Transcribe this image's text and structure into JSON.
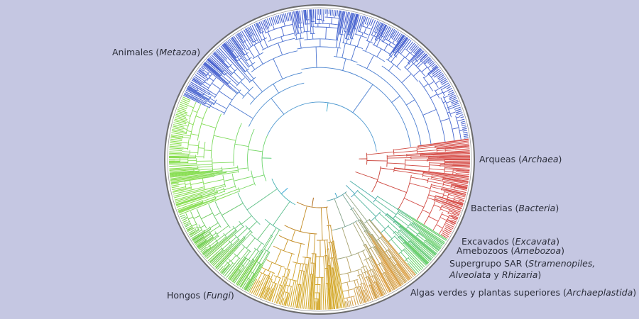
{
  "labels": [
    {
      "id": "animales",
      "text": "Animales (",
      "italic": "Metazoa",
      "after": ")"
    },
    {
      "id": "arqueas",
      "text": "Arqueas (",
      "italic": "Archaea",
      "after": ")"
    },
    {
      "id": "bacterias",
      "text": "Bacterias (",
      "italic": "Bacteria",
      "after": ")"
    },
    {
      "id": "excavados",
      "text": "Excavados (",
      "italic": "Excavata",
      "after": ")"
    },
    {
      "id": "amebozoos",
      "text": "Amebozoos (",
      "italic": "Amebozoa",
      "after": ")"
    },
    {
      "id": "sar1",
      "text": "Supergrupo SAR (",
      "italic": "Stramenopiles,",
      "after": ""
    },
    {
      "id": "sar2",
      "text": "",
      "italic": "Alveolata",
      "after": " y ",
      "italic2": "Rhizaria",
      "after2": ")"
    },
    {
      "id": "algas",
      "text": "Algas verdes y plantas superiores (",
      "italic": "Archaeplastida",
      "after": ")"
    },
    {
      "id": "hongos",
      "text": "Hongos (",
      "italic": "Fungi",
      "after": ")"
    }
  ],
  "colors": {
    "background": "#c5c7e2",
    "disc": "#ffffff",
    "ring": "#6b6b6b",
    "archaea": "#c0392b",
    "bacteria": "#d9534f",
    "animals": "#4a5fd0",
    "fungi": "#7bd34a",
    "plants": "#b06a1a",
    "sar": "#3a9ad9"
  }
}
